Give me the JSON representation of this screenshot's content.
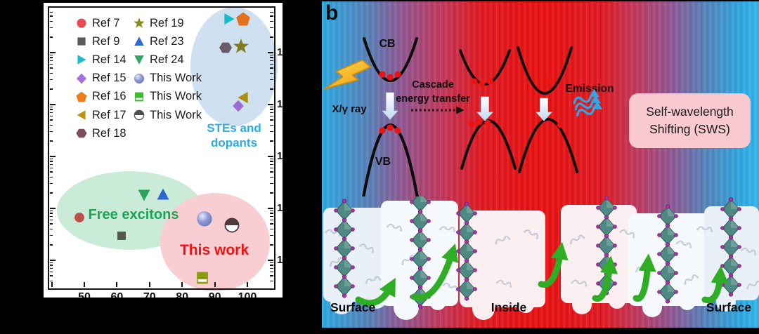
{
  "panel_a": {
    "legend": {
      "col1": [
        {
          "label": "Ref 7",
          "marker": "circle",
          "color": "#ea4852"
        },
        {
          "label": "Ref 9",
          "marker": "square",
          "color": "#5a5a5a"
        },
        {
          "label": "Ref 14",
          "marker": "triangle-right",
          "color": "#19c0cb"
        },
        {
          "label": "Ref 15",
          "marker": "diamond",
          "color": "#a86ede"
        },
        {
          "label": "Ref 16",
          "marker": "pentagon",
          "color": "#ef7d1a"
        },
        {
          "label": "Ref 17",
          "marker": "triangle-left",
          "color": "#bc9313"
        },
        {
          "label": "Ref 18",
          "marker": "hexagon",
          "color": "#7b4f5b"
        }
      ],
      "col2": [
        {
          "label": "Ref 19",
          "marker": "star",
          "color": "#8b8b1d"
        },
        {
          "label": "Ref 23",
          "marker": "triangle-up",
          "color": "#2e6ad2"
        },
        {
          "label": "Ref 24",
          "marker": "triangle-down",
          "color": "#2fa55e"
        },
        {
          "label": "This Work",
          "marker": "sphere",
          "color": "#8c99d6"
        },
        {
          "label": "This Work",
          "marker": "square-half",
          "color": "#3cbb2e"
        },
        {
          "label": "This Work",
          "marker": "circle-half",
          "color": "#4d4d4d"
        }
      ]
    },
    "regions": {
      "ste_label": "STEs and dopants",
      "ste_label_line1": "STEs and",
      "ste_label_line2": "dopants",
      "free_label": "Free excitons",
      "this_label": "This work"
    },
    "right_axis_partial_labels": [
      "1",
      "1",
      "1",
      "1",
      "1"
    ]
  },
  "panel_b": {
    "b_label": "b",
    "cb_label": "CB",
    "vb_label": "VB",
    "xray_label": "X/γ ray",
    "cascade_label": [
      "Cascade",
      "energy transfer"
    ],
    "emission_label": "Emission",
    "sws_label": [
      "Self-wavelength",
      "Shifting (SWS)"
    ],
    "bottom_labels": [
      "Surface",
      "Inside",
      "Surface"
    ]
  },
  "chart_data": {
    "type": "scatter",
    "title": "",
    "x_axis": {
      "tick_labels": [
        "50",
        "60",
        "70",
        "80",
        "90",
        "100"
      ],
      "range": [
        39,
        108
      ],
      "label": "(axis label clipped out of frame)"
    },
    "y_axis": {
      "scale": "log",
      "major_tick_count": 5,
      "label": "(tick labels clipped out of frame)"
    },
    "legend_position": "upper-left inside plot",
    "grid": false,
    "groups": [
      "STEs and dopants",
      "Free excitons",
      "This work"
    ],
    "points": [
      {
        "series": "Ref 7",
        "marker": "circle",
        "color": "#bb5249",
        "x": 48.5,
        "y_frac": 0.25,
        "group": "Free excitons"
      },
      {
        "series": "Ref 9",
        "marker": "square",
        "color": "#50594f",
        "x": 61.4,
        "y_frac": 0.183,
        "group": "Free excitons"
      },
      {
        "series": "Ref 14",
        "marker": "triangle-right",
        "color": "#14bec8",
        "x": 94.5,
        "y_frac": 0.96,
        "group": "STEs and dopants"
      },
      {
        "series": "Ref 15",
        "marker": "diamond",
        "color": "#9c6cd6",
        "x": 97.1,
        "y_frac": 0.649,
        "group": "STEs and dopants"
      },
      {
        "series": "Ref 16",
        "marker": "pentagon",
        "color": "#e4721c",
        "x": 98.6,
        "y_frac": 0.962,
        "group": "STEs and dopants"
      },
      {
        "series": "Ref 17",
        "marker": "triangle-left",
        "color": "#a9900f",
        "x": 98.8,
        "y_frac": 0.679,
        "group": "STEs and dopants"
      },
      {
        "series": "Ref 18",
        "marker": "hexagon",
        "color": "#6a5a67",
        "x": 93.4,
        "y_frac": 0.859,
        "group": "STEs and dopants"
      },
      {
        "series": "Ref 19",
        "marker": "star",
        "color": "#7e7e20",
        "x": 98.0,
        "y_frac": 0.862,
        "group": "STEs and dopants"
      },
      {
        "series": "Ref 23",
        "marker": "triangle-up",
        "color": "#2b66cc",
        "x": 74.1,
        "y_frac": 0.333,
        "group": "Free excitons"
      },
      {
        "series": "Ref 24",
        "marker": "triangle-down",
        "color": "#2aa35b",
        "x": 68.3,
        "y_frac": 0.33,
        "group": "Free excitons"
      },
      {
        "series": "This Work",
        "marker": "sphere",
        "color": "#8f97d2",
        "x": 86.8,
        "y_frac": 0.245,
        "group": "This work"
      },
      {
        "series": "This Work",
        "marker": "square-half",
        "color": "#8d9b10",
        "x": 86.1,
        "y_frac": 0.032,
        "group": "This work"
      },
      {
        "series": "This Work",
        "marker": "circle-half",
        "color": "#4f3a3c",
        "x": 95.2,
        "y_frac": 0.222,
        "group": "This work"
      }
    ]
  }
}
